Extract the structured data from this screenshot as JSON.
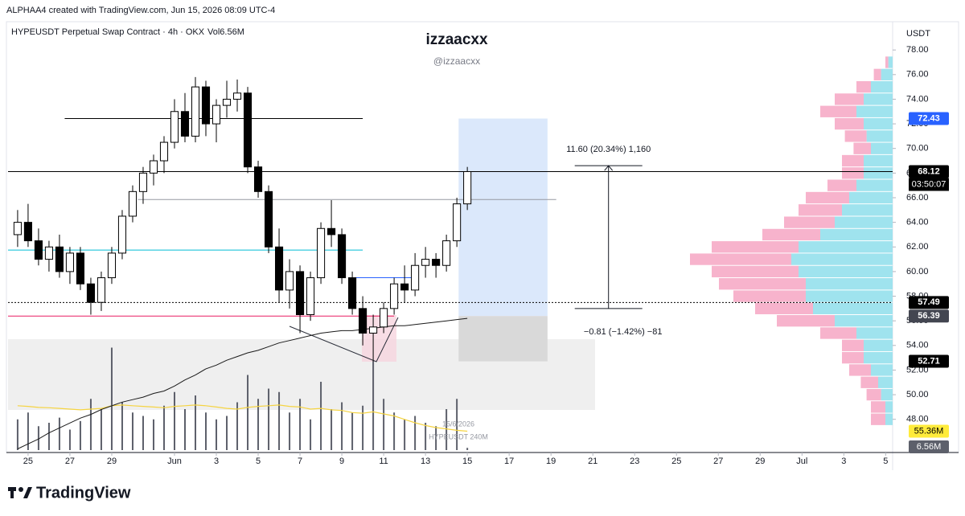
{
  "header": {
    "credit": "ALPHAA4 created with TradingView.com, Jun 15, 2026 08:09 UTC-4"
  },
  "footer": {
    "brand": "TradingView"
  },
  "chart_data": {
    "type": "candlestick",
    "title": "HYPEUSDT Perpetual Swap Contract · 4h · OKX",
    "volume_title": "Vol6.56M",
    "watermark": "izzaacxx",
    "watermark_handle": "@izzaacxx",
    "watermark_date": "15/6/2026",
    "watermark_volume": "HYPEUSDT 240M",
    "currency": "USDT",
    "countdown": "03:50:07",
    "x": [
      "2026-05-24T12:00",
      "2026-05-25T00:00",
      "2026-05-25T12:00",
      "2026-05-26T00:00",
      "2026-05-26T12:00",
      "2026-05-27T00:00",
      "2026-05-27T12:00",
      "2026-05-28T00:00",
      "2026-05-28T12:00",
      "2026-05-29T00:00",
      "2026-05-29T12:00",
      "2026-05-30T00:00",
      "2026-05-30T12:00",
      "2026-05-31T00:00",
      "2026-05-31T12:00",
      "2026-06-01T00:00",
      "2026-06-01T12:00",
      "2026-06-02T00:00",
      "2026-06-02T12:00",
      "2026-06-03T00:00",
      "2026-06-03T12:00",
      "2026-06-04T00:00",
      "2026-06-04T12:00",
      "2026-06-05T00:00",
      "2026-06-05T12:00",
      "2026-06-06T00:00",
      "2026-06-06T12:00",
      "2026-06-07T00:00",
      "2026-06-07T12:00",
      "2026-06-08T00:00",
      "2026-06-08T12:00",
      "2026-06-09T00:00",
      "2026-06-09T12:00",
      "2026-06-10T00:00",
      "2026-06-10T12:00",
      "2026-06-11T00:00",
      "2026-06-11T12:00",
      "2026-06-12T00:00",
      "2026-06-12T12:00",
      "2026-06-13T00:00",
      "2026-06-13T12:00",
      "2026-06-14T00:00",
      "2026-06-14T12:00",
      "2026-06-15T00:00"
    ],
    "open": [
      63,
      64,
      62.5,
      61,
      62,
      60,
      61.5,
      59,
      57.5,
      59.5,
      61.5,
      64.5,
      66.5,
      68,
      69,
      70.5,
      73,
      71,
      75,
      72,
      73.5,
      74,
      74.5,
      68.5,
      66.5,
      62,
      58.5,
      60,
      56.5,
      59.5,
      63.5,
      63,
      59.5,
      57,
      55,
      55.5,
      57,
      59,
      58.5,
      60.5,
      61,
      60.5,
      62.5,
      65.5
    ],
    "high": [
      65,
      65.5,
      63.5,
      62.5,
      63,
      62,
      62,
      59.5,
      60,
      62,
      65,
      67,
      68.5,
      69.5,
      71,
      74,
      74.5,
      75.8,
      75.5,
      74,
      75.5,
      75.6,
      75,
      69,
      67,
      63.5,
      61,
      60.5,
      60,
      64,
      65.8,
      63.5,
      60,
      58,
      56.5,
      57.5,
      59.5,
      60.5,
      61.5,
      62,
      61.5,
      63,
      66,
      68.5
    ],
    "low": [
      62,
      62,
      60.5,
      60,
      59.5,
      59,
      58.5,
      56.5,
      56.8,
      59,
      61,
      64,
      65.5,
      67,
      68,
      70,
      70.5,
      70.5,
      71,
      70.5,
      72.5,
      73,
      68,
      66,
      61.5,
      57.5,
      57,
      55,
      56,
      59,
      62,
      59,
      56.5,
      54,
      52.7,
      55,
      56.5,
      57.5,
      58,
      59.5,
      59.5,
      60,
      62,
      65
    ],
    "close": [
      64,
      62.5,
      61,
      62,
      60,
      61.5,
      59,
      57.5,
      59.5,
      61.5,
      64.5,
      66.5,
      68,
      69,
      70.5,
      73,
      71,
      75,
      72,
      73.5,
      74,
      74.5,
      68.5,
      66.5,
      62,
      58.5,
      60,
      56.5,
      59.5,
      63.5,
      63,
      59.5,
      57,
      55,
      55.5,
      57,
      59,
      58.5,
      60.5,
      61,
      60.5,
      62.5,
      65.5,
      68.12
    ],
    "up_color": "#ffffff",
    "down_color": "#000000",
    "wick_color": "#000000",
    "ma": {
      "color": "#1a1a1a",
      "values": [
        45.6,
        46.0,
        46.4,
        46.9,
        47.3,
        47.7,
        48.1,
        48.4,
        48.8,
        49.1,
        49.4,
        49.6,
        49.8,
        50.1,
        50.3,
        50.7,
        51.2,
        51.6,
        52.1,
        52.4,
        52.8,
        53.1,
        53.4,
        53.6,
        53.9,
        54.2,
        54.4,
        54.6,
        54.8,
        55.0,
        55.1,
        55.2,
        55.2,
        55.3,
        55.4,
        55.5,
        55.6,
        55.6,
        55.7,
        55.8,
        55.9,
        56.0,
        56.1,
        56.2
      ]
    },
    "volume": {
      "color": "#5d606b",
      "vlim": [
        0,
        400
      ],
      "values": [
        90,
        110,
        70,
        80,
        95,
        60,
        85,
        150,
        120,
        300,
        140,
        110,
        100,
        90,
        130,
        170,
        120,
        160,
        110,
        90,
        100,
        140,
        220,
        150,
        180,
        170,
        110,
        150,
        90,
        200,
        120,
        140,
        110,
        130,
        260,
        150,
        110,
        90,
        100,
        80,
        70,
        120,
        150,
        6.56
      ]
    },
    "volume_ma": {
      "color": "#f5d442",
      "values": [
        130,
        128,
        125,
        124,
        122,
        120,
        118,
        120,
        122,
        130,
        132,
        130,
        128,
        126,
        124,
        128,
        130,
        132,
        130,
        126,
        122,
        120,
        125,
        128,
        130,
        132,
        128,
        126,
        120,
        122,
        118,
        116,
        110,
        108,
        112,
        106,
        100,
        90,
        80,
        72,
        66,
        62,
        58,
        55.36
      ]
    },
    "volume_labels": [
      {
        "value": 55.36,
        "label": "55.36M",
        "color": "#ffeb3b",
        "text_color": "#000000"
      },
      {
        "value": 6.56,
        "label": "6.56M",
        "color": "#5d606b",
        "text_color": "#ffffff"
      }
    ],
    "ylim": [
      45.5,
      80.1
    ],
    "yticks": [
      {
        "value": 48,
        "label": "48.00"
      },
      {
        "value": 50,
        "label": "50.00"
      },
      {
        "value": 52,
        "label": "52.00"
      },
      {
        "value": 54,
        "label": "54.00"
      },
      {
        "value": 56,
        "label": "56.00"
      },
      {
        "value": 58,
        "label": "58.00"
      },
      {
        "value": 60,
        "label": "60.00"
      },
      {
        "value": 62,
        "label": "62.00"
      },
      {
        "value": 64,
        "label": "64.00"
      },
      {
        "value": 66,
        "label": "66.00"
      },
      {
        "value": 68,
        "label": "68.00"
      },
      {
        "value": 70,
        "label": "70.00"
      },
      {
        "value": 72,
        "label": "72.00"
      },
      {
        "value": 74,
        "label": "74.00"
      },
      {
        "value": 76,
        "label": "76.00"
      },
      {
        "value": 78,
        "label": "78.00"
      }
    ],
    "xlim": [
      "2026-05-24T01:00",
      "2026-07-05T08:00"
    ],
    "xticks": [
      {
        "value": "2026-05-25T00:00",
        "label": "25"
      },
      {
        "value": "2026-05-27T00:00",
        "label": "27"
      },
      {
        "value": "2026-05-29T00:00",
        "label": "29"
      },
      {
        "value": "2026-06-01T00:00",
        "label": "Jun"
      },
      {
        "value": "2026-06-03T00:00",
        "label": "3"
      },
      {
        "value": "2026-06-05T00:00",
        "label": "5"
      },
      {
        "value": "2026-06-07T00:00",
        "label": "7"
      },
      {
        "value": "2026-06-09T00:00",
        "label": "9"
      },
      {
        "value": "2026-06-11T00:00",
        "label": "11"
      },
      {
        "value": "2026-06-13T00:00",
        "label": "13"
      },
      {
        "value": "2026-06-15T00:00",
        "label": "15"
      },
      {
        "value": "2026-06-17T00:00",
        "label": "17"
      },
      {
        "value": "2026-06-19T00:00",
        "label": "19"
      },
      {
        "value": "2026-06-21T00:00",
        "label": "21"
      },
      {
        "value": "2026-06-23T00:00",
        "label": "23"
      },
      {
        "value": "2026-06-25T00:00",
        "label": "25"
      },
      {
        "value": "2026-06-27T00:00",
        "label": "27"
      },
      {
        "value": "2026-06-29T00:00",
        "label": "29"
      },
      {
        "value": "2026-07-01T00:00",
        "label": "Jul"
      },
      {
        "value": "2026-07-03T00:00",
        "label": "3"
      },
      {
        "value": "2026-07-05T00:00",
        "label": "5"
      }
    ],
    "price_labels": [
      {
        "value": 72.43,
        "label": "72.43",
        "color": "#2962ff"
      },
      {
        "value": 68.12,
        "label": "68.12",
        "color": "#000000"
      },
      {
        "value": 57.49,
        "label": "57.49",
        "color": "#000000"
      },
      {
        "value": 56.39,
        "label": "56.39",
        "color": "#434651"
      },
      {
        "value": 52.71,
        "label": "52.71",
        "color": "#000000"
      }
    ],
    "lines": [
      {
        "value": 72.43,
        "color": "#000000",
        "start": "2026-05-26T18:00",
        "end": "2026-06-10T00:00"
      },
      {
        "value": 68.12,
        "color": "#000000"
      },
      {
        "value": 65.85,
        "color": "#9598a1",
        "start": "2026-05-30T06:00",
        "end": "2026-06-19T06:00"
      },
      {
        "value": 61.75,
        "color": "#00bcd4",
        "start": "2026-05-24T01:00",
        "end": "2026-06-10T00:00"
      },
      {
        "value": 59.5,
        "color": "#2962ff",
        "start": "2026-06-09T14:00",
        "end": "2026-06-12T12:00"
      },
      {
        "value": 57.49,
        "color": "#000000",
        "dash": true
      },
      {
        "value": 56.39,
        "color": "#e91e63",
        "start": "2026-05-24T01:00",
        "end": "2026-06-11T12:00"
      }
    ],
    "position": {
      "target": 72.43,
      "entry": 56.39,
      "stop": 52.71,
      "start": "2026-06-14T14:00",
      "end": "2026-06-18T20:00",
      "profit_color": "#dbe8fb",
      "loss_color": "#d9d9d9"
    },
    "measure": {
      "from": 57.0,
      "to": 68.6,
      "at": "2026-06-21T18:00",
      "label": "11.60 (20.34%) 1,160",
      "loss_label": "−0.81 (−1.42%) −81"
    },
    "volume_profile": {
      "up_color": "#9fe3ee",
      "down_color": "#f7b3cc",
      "levels": [
        48,
        49,
        50,
        51,
        52,
        53,
        54,
        55,
        56,
        57,
        58,
        59,
        60,
        61,
        62,
        63,
        64,
        65,
        66,
        67,
        68,
        69,
        70,
        71,
        72,
        73,
        74,
        75,
        76,
        77
      ],
      "up": [
        5,
        5,
        8,
        10,
        15,
        20,
        20,
        25,
        40,
        55,
        60,
        60,
        65,
        70,
        65,
        50,
        40,
        35,
        30,
        25,
        20,
        20,
        15,
        18,
        20,
        25,
        20,
        15,
        8,
        3
      ],
      "down": [
        10,
        10,
        10,
        12,
        15,
        15,
        15,
        25,
        40,
        40,
        50,
        60,
        60,
        70,
        60,
        40,
        35,
        30,
        30,
        20,
        15,
        15,
        12,
        15,
        20,
        25,
        20,
        10,
        5,
        2
      ]
    }
  }
}
